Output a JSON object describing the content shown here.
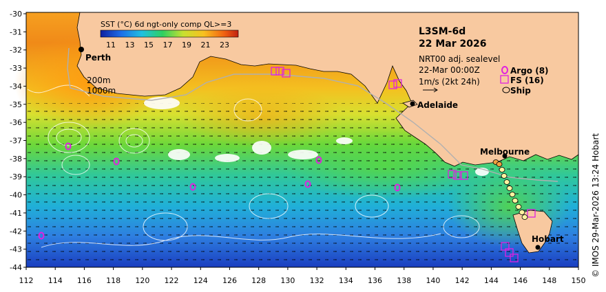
{
  "title": "L3SM-6d",
  "date": "22 Mar 2026",
  "colorbar": {
    "label": "SST (°C) 6d ngt-only comp QL>=3",
    "ticks": [
      "11",
      "13",
      "15",
      "17",
      "19",
      "21",
      "23"
    ]
  },
  "contours": {
    "line1": "200m",
    "line2": "1000m"
  },
  "currents": {
    "line1": "NRT00 adj. sealevel",
    "line2": "22-Mar 00:00Z",
    "scale": "1m/s (2kt 24h)"
  },
  "legend": {
    "argo": "Argo (8)",
    "fs": "FS (16)",
    "ship": "Ship"
  },
  "cities": [
    "Perth",
    "Adelaide",
    "Melbourne",
    "Hobart"
  ],
  "x_ticks": [
    "112",
    "114",
    "116",
    "118",
    "120",
    "122",
    "124",
    "126",
    "128",
    "130",
    "132",
    "134",
    "136",
    "138",
    "140",
    "142",
    "144",
    "146",
    "148",
    "150"
  ],
  "y_ticks": [
    "-30",
    "-31",
    "-32",
    "-33",
    "-34",
    "-35",
    "-36",
    "-37",
    "-38",
    "-39",
    "-40",
    "-41",
    "-42",
    "-43",
    "-44"
  ],
  "credit": "© IMOS 29-Mar-2026 13:24 Hobart",
  "colors": {
    "land": "#f8c9a0",
    "warm": "#e8641e",
    "cool": "#2a6fd6",
    "argo": "#e020e0"
  }
}
